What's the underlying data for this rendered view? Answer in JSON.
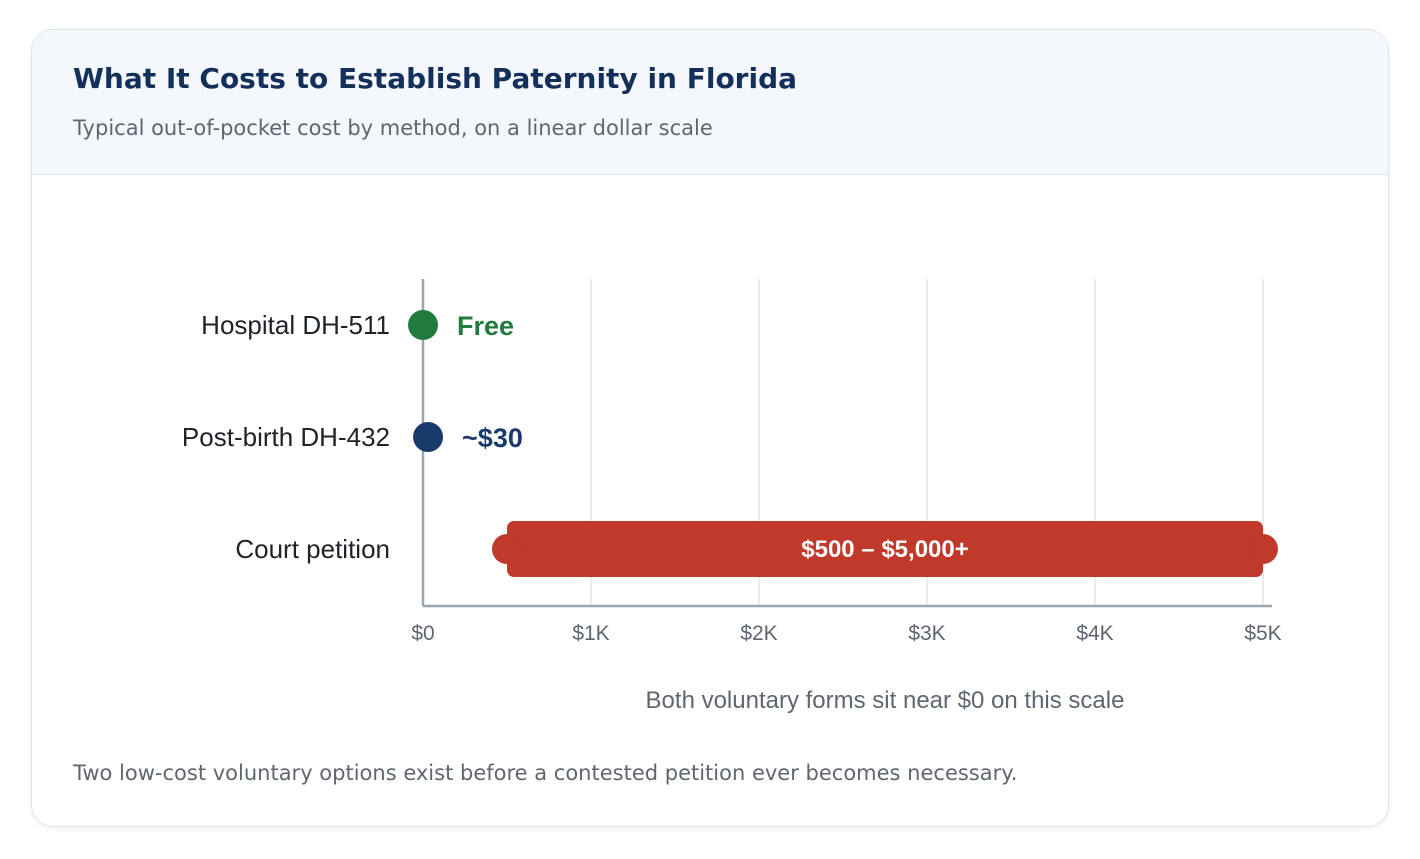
{
  "card": {
    "title": "What It Costs to Establish Paternity in Florida",
    "subtitle": "Typical out-of-pocket cost by method, on a linear dollar scale",
    "footnote": "Two low-cost voluntary options exist before a contested petition ever becomes necessary."
  },
  "chart_data": {
    "type": "range-dot",
    "xlim": [
      0,
      5000
    ],
    "x_ticks": [
      {
        "value": 0,
        "label": "$0"
      },
      {
        "value": 1000,
        "label": "$1K"
      },
      {
        "value": 2000,
        "label": "$2K"
      },
      {
        "value": 3000,
        "label": "$3K"
      },
      {
        "value": 4000,
        "label": "$4K"
      },
      {
        "value": 5000,
        "label": "$5K"
      }
    ],
    "grid": true,
    "annotation": "Both voluntary forms sit near $0 on this scale",
    "rows": [
      {
        "category": "Hospital DH-511",
        "mark": "dot",
        "value": 0,
        "label": "Free",
        "color": "#217a3e"
      },
      {
        "category": "Post-birth DH-432",
        "mark": "dot",
        "value": 30,
        "label": "~$30",
        "color": "#1a3a6b"
      },
      {
        "category": "Court petition",
        "mark": "range",
        "min": 500,
        "max": 5000,
        "label": "$500 – $5,000+",
        "color": "#c0392b"
      }
    ]
  }
}
